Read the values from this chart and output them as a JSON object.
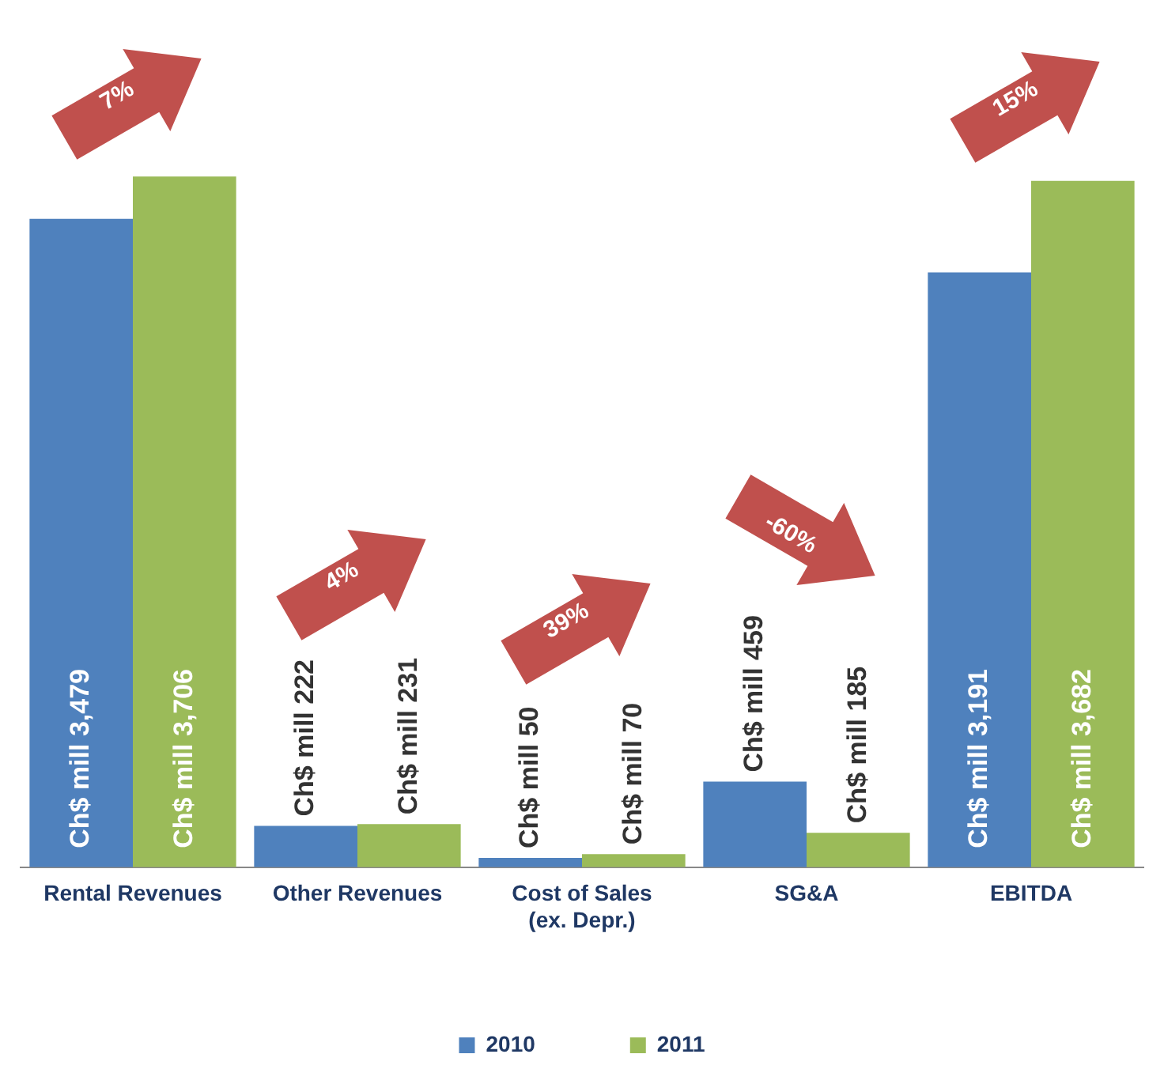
{
  "chart_data": {
    "type": "bar",
    "categories": [
      "Rental Revenues",
      "Other Revenues",
      "Cost of Sales (ex. Depr.)",
      "SG&A",
      "EBITDA"
    ],
    "series": [
      {
        "name": "2010",
        "color": "#4f81bd",
        "values": [
          3479,
          222,
          50,
          459,
          3191
        ],
        "value_labels": [
          "Ch$ mill 3,479",
          "Ch$ mill 222",
          "Ch$ mill 50",
          "Ch$ mill 459",
          "Ch$ mill 3,191"
        ]
      },
      {
        "name": "2011",
        "color": "#9bbb59",
        "values": [
          3706,
          231,
          70,
          185,
          3682
        ],
        "value_labels": [
          "Ch$ mill 3,706",
          "Ch$ mill 231",
          "Ch$ mill 70",
          "Ch$ mill 185",
          "Ch$ mill 3,682"
        ]
      }
    ],
    "annotations": [
      "7%",
      "4%",
      "39%",
      "-60%",
      "15%"
    ],
    "legend": "bottom",
    "grid": false
  }
}
